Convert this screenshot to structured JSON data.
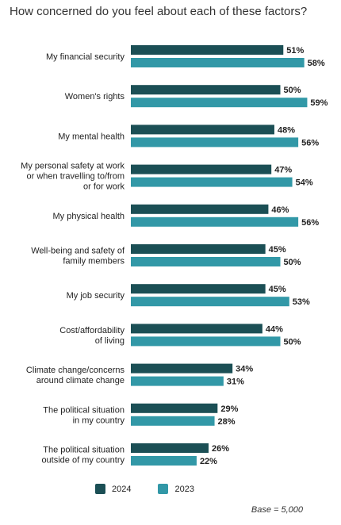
{
  "title": "How concerned do you feel about each of these factors?",
  "colors": {
    "series_2024": "#1b4f55",
    "series_2023": "#3298a7"
  },
  "legend": {
    "items": [
      "2024",
      "2023"
    ]
  },
  "base_note": "Base = 5,000",
  "chart_data": {
    "type": "bar",
    "orientation": "horizontal",
    "title": "How concerned do you feel about each of these factors?",
    "categories": [
      [
        "My financial security"
      ],
      [
        "Women's rights"
      ],
      [
        "My mental health"
      ],
      [
        "My personal safety at work",
        "or when travelling to/from",
        "or for work"
      ],
      [
        "My physical health"
      ],
      [
        "Well-being and safety of",
        "family members"
      ],
      [
        "My job security"
      ],
      [
        "Cost/affordability",
        "of living"
      ],
      [
        "Climate change/concerns",
        "around climate change"
      ],
      [
        "The political situation",
        "in my country"
      ],
      [
        "The political situation",
        "outside of my country"
      ]
    ],
    "series": [
      {
        "name": "2024",
        "values": [
          51,
          50,
          48,
          47,
          46,
          45,
          45,
          44,
          34,
          29,
          26
        ]
      },
      {
        "name": "2023",
        "values": [
          58,
          59,
          56,
          54,
          56,
          50,
          53,
          50,
          31,
          28,
          22
        ]
      }
    ],
    "value_suffix": "%",
    "xlim": [
      0,
      100
    ],
    "grid": false,
    "legend_position": "bottom"
  }
}
